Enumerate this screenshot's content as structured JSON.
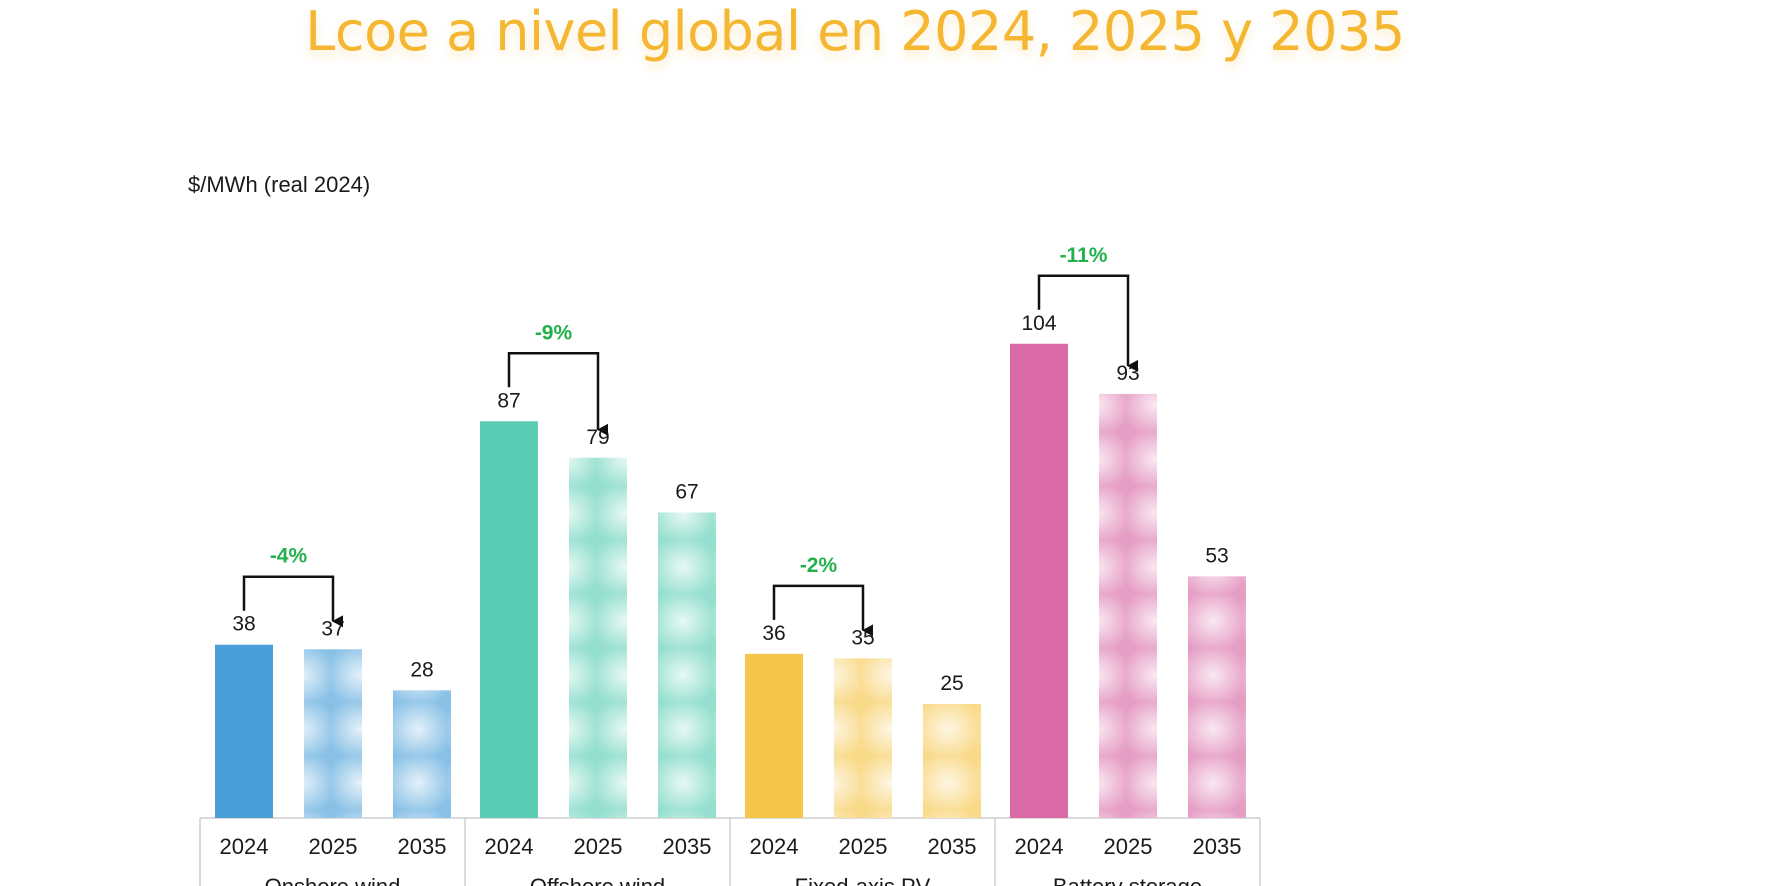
{
  "title": "Lcoe a nivel global en 2024, 2025 y 2035",
  "chart_data": {
    "type": "bar",
    "title": "Lcoe a nivel global en 2024, 2025 y 2035",
    "ylabel": "$/MWh (real 2024)",
    "xlabel": "",
    "ylim": [
      0,
      115
    ],
    "grid": false,
    "legend": "none",
    "groups": [
      {
        "name": "Onshore wind",
        "color": "#4A9FD8",
        "years": [
          "2024",
          "2025",
          "2035"
        ],
        "values": [
          38,
          37,
          28
        ],
        "change_label": "-4%"
      },
      {
        "name": "Offshore wind",
        "color": "#5ACDB4",
        "years": [
          "2024",
          "2025",
          "2035"
        ],
        "values": [
          87,
          79,
          67
        ],
        "change_label": "-9%"
      },
      {
        "name": "Fixed-axis PV",
        "color": "#F6C64A",
        "years": [
          "2024",
          "2025",
          "2035"
        ],
        "values": [
          36,
          35,
          25
        ],
        "change_label": "-2%"
      },
      {
        "name": "Battery storage",
        "color": "#D96AA6",
        "years": [
          "2024",
          "2025",
          "2035"
        ],
        "values": [
          104,
          93,
          53
        ],
        "change_label": "-11%"
      }
    ]
  }
}
